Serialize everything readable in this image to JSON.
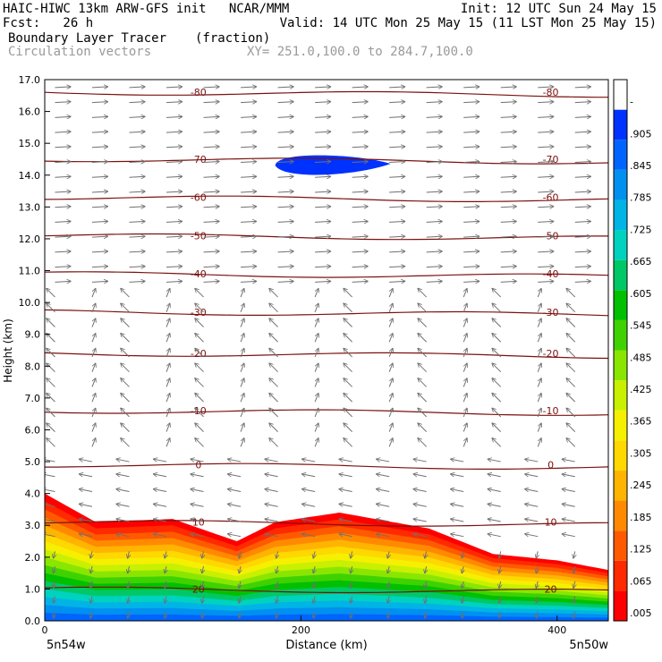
{
  "header": {
    "line1_left": "HAIC-HIWC 13km ARW-GFS init   NCAR/MMM",
    "line1_right": "Init: 12 UTC Sun 24 May 15",
    "line2_left": "Fcst:   26 h",
    "line2_right": "Valid: 14 UTC Mon 25 May 15 (11 LST Mon 25 May 15)",
    "field_name": "Boundary Layer Tracer",
    "field_units": "(fraction)",
    "overlay_name": "Circulation vectors",
    "section_coords": "XY= 251.0,100.0 to 284.7,100.0"
  },
  "colors": {
    "contour": "#7b1010",
    "vector": "#707070",
    "palette": [
      "#ff0000",
      "#ff2a00",
      "#ff5a00",
      "#ff8a00",
      "#ffb400",
      "#ffd800",
      "#f5f000",
      "#c8f000",
      "#8ae600",
      "#3fd200",
      "#00c000",
      "#00c866",
      "#00d2c0",
      "#00b4e6",
      "#0090f0",
      "#0064ff",
      "#0032ff",
      "#ffffff"
    ]
  },
  "plot": {
    "x_ticks": [
      "0",
      "200",
      "400"
    ],
    "y_ticks": [
      "0.0",
      "1.0",
      "2.0",
      "3.0",
      "4.0",
      "5.0",
      "6.0",
      "7.0",
      "8.0",
      "9.0",
      "10.0",
      "11.0",
      "12.0",
      "13.0",
      "14.0",
      "15.0",
      "16.0",
      "17.0"
    ],
    "xlabel": "Distance (km)",
    "ylabel": "Height (km)",
    "left_endpoint": "5n54w",
    "right_endpoint": "5n50w",
    "colorbar_labels": [
      ".005",
      ".065",
      ".125",
      ".185",
      ".245",
      ".305",
      ".365",
      ".425",
      ".485",
      ".545",
      ".605",
      ".665",
      ".725",
      ".785",
      ".845",
      ".905",
      "-"
    ],
    "contour_labels": [
      "-80",
      "-70",
      "-60",
      "-50",
      "-40",
      "-30",
      "-20",
      "-10",
      "0",
      "10",
      "20"
    ]
  },
  "chart_data": {
    "type": "heatmap",
    "title": "Boundary Layer Tracer (fraction)",
    "overlay": "Circulation vectors",
    "x_range": [
      0,
      440
    ],
    "y_range": [
      0,
      17
    ],
    "xlabel": "Distance (km)",
    "ylabel": "Height (km)",
    "colorbar_range": [
      0.005,
      1.0
    ],
    "bl_top_km": [
      [
        0,
        4.0
      ],
      [
        40,
        3.1
      ],
      [
        100,
        3.2
      ],
      [
        150,
        2.5
      ],
      [
        180,
        3.1
      ],
      [
        230,
        3.4
      ],
      [
        300,
        2.9
      ],
      [
        350,
        2.1
      ],
      [
        400,
        1.9
      ],
      [
        440,
        1.6
      ]
    ],
    "upper_tracer_blob": {
      "x_km": [
        180,
        270
      ],
      "height_km": 14.3
    },
    "isotherms_degC": [
      {
        "label": "-80",
        "height_km": 16.6
      },
      {
        "label": "-70",
        "height_km": 14.5
      },
      {
        "label": "-60",
        "height_km": 13.3
      },
      {
        "label": "-50",
        "height_km": 12.1
      },
      {
        "label": "-40",
        "height_km": 10.9
      },
      {
        "label": "-30",
        "height_km": 9.7
      },
      {
        "label": "-20",
        "height_km": 8.4
      },
      {
        "label": "-10",
        "height_km": 6.6
      },
      {
        "label": "0",
        "height_km": 4.9
      },
      {
        "label": "10",
        "height_km": 3.1
      },
      {
        "label": "20",
        "height_km": 1.0
      }
    ]
  }
}
